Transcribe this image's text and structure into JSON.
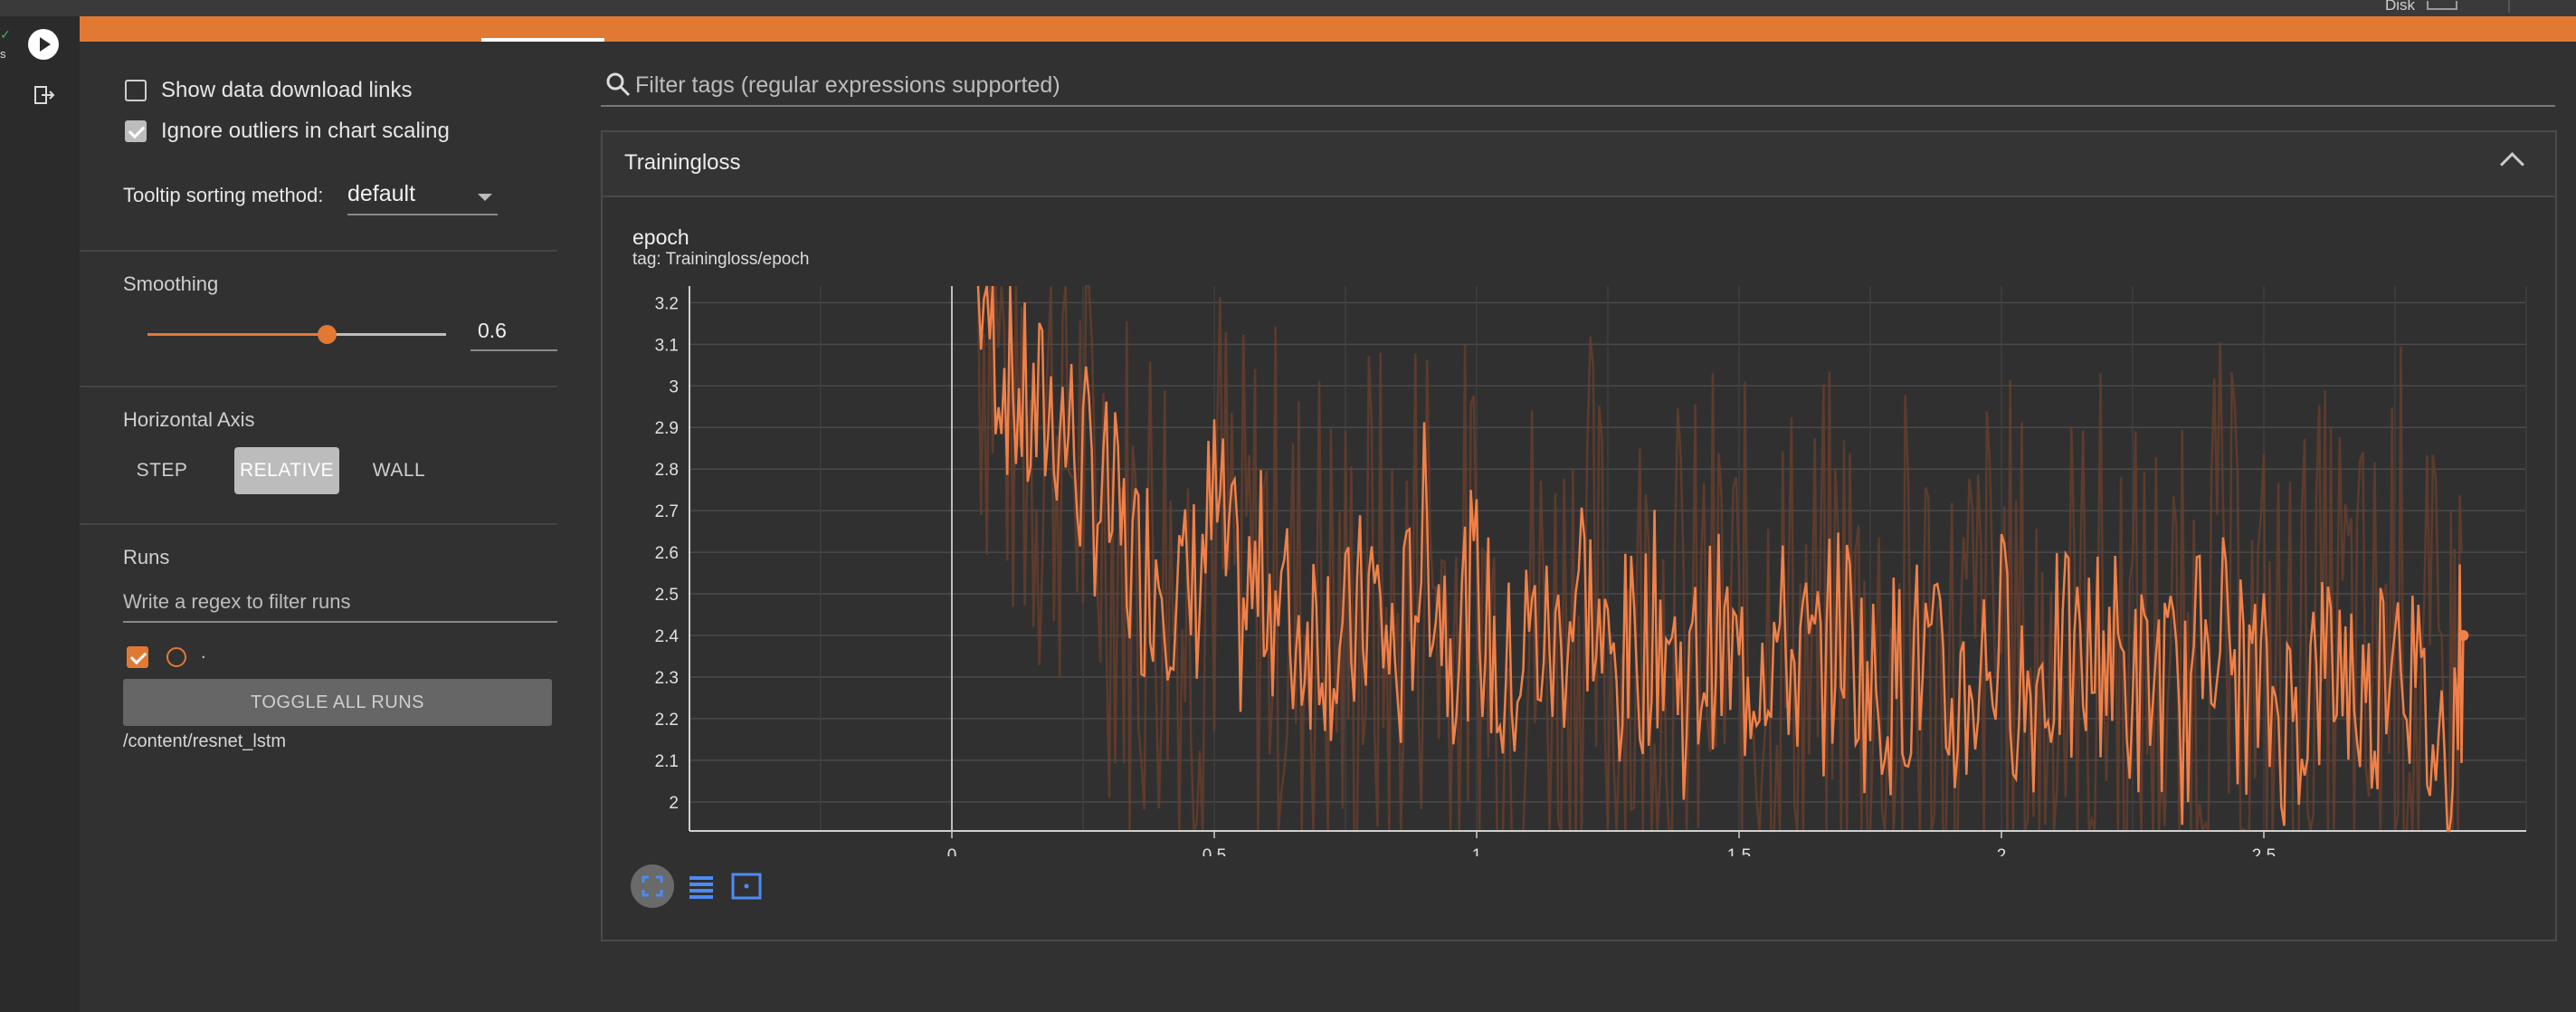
{
  "topbar": {
    "disk_label": "Disk"
  },
  "sidebar": {
    "show_download_label": "Show data download links",
    "show_download_checked": false,
    "ignore_outliers_label": "Ignore outliers in chart scaling",
    "ignore_outliers_checked": true,
    "tooltip_label": "Tooltip sorting method:",
    "tooltip_value": "default",
    "smoothing_title": "Smoothing",
    "smoothing_value": "0.6",
    "haxis_title": "Horizontal Axis",
    "haxis_options": [
      "STEP",
      "RELATIVE",
      "WALL"
    ],
    "haxis_selected": "RELATIVE",
    "runs_title": "Runs",
    "runs_placeholder": "Write a regex to filter runs",
    "run_label": ".",
    "toggle_all_label": "TOGGLE ALL RUNS",
    "run_path": "/content/resnet_lstm"
  },
  "main": {
    "filter_placeholder": "Filter tags (regular expressions supported)",
    "card_title": "Trainingloss",
    "plot_title": "epoch",
    "plot_tag": "tag: Trainingloss/epoch"
  },
  "colors": {
    "accent": "#e27933",
    "line": "#f08048",
    "raw_line": "#6b3f2c"
  },
  "icons": [
    "play-icon",
    "exit-icon",
    "search-icon",
    "chevron-up-icon",
    "fit-domain-icon",
    "toggle-log-icon",
    "zoom-box-icon"
  ],
  "chart_data": {
    "type": "line",
    "title": "epoch",
    "xlabel": "",
    "ylabel": "",
    "x_ticks": [
      0,
      0.5,
      1,
      1.5,
      2,
      2.5
    ],
    "y_ticks": [
      2,
      2.1,
      2.2,
      2.3,
      2.4,
      2.5,
      2.6,
      2.7,
      2.8,
      2.9,
      3,
      3.1,
      3.2
    ],
    "xlim": [
      -0.5,
      3.0
    ],
    "ylim": [
      1.93,
      3.24
    ],
    "series": [
      {
        "x": [
          0.05,
          0.1,
          0.15,
          0.2,
          0.25,
          0.3,
          0.35,
          0.4,
          0.45,
          0.5,
          0.55,
          0.6,
          0.65,
          0.7,
          0.75,
          0.8,
          0.85,
          0.9,
          0.95,
          1.0,
          1.05,
          1.1,
          1.15,
          1.2,
          1.25,
          1.3,
          1.35,
          1.4,
          1.45,
          1.5,
          1.55,
          1.6,
          1.65,
          1.7,
          1.75,
          1.8,
          1.85,
          1.9,
          1.95,
          2.0,
          2.05,
          2.1,
          2.15,
          2.2,
          2.25,
          2.3,
          2.35,
          2.4,
          2.45,
          2.5,
          2.55,
          2.6,
          2.65,
          2.7,
          2.75,
          2.8,
          2.85,
          2.88
        ],
        "values": [
          3.25,
          3.05,
          2.9,
          2.95,
          2.8,
          2.7,
          2.55,
          2.6,
          2.45,
          2.7,
          2.45,
          2.55,
          2.4,
          2.45,
          2.35,
          2.5,
          2.3,
          2.65,
          2.4,
          2.5,
          2.25,
          2.4,
          2.35,
          2.55,
          2.3,
          2.35,
          2.45,
          2.25,
          2.4,
          2.3,
          2.4,
          2.35,
          2.3,
          2.45,
          2.25,
          2.3,
          2.35,
          2.2,
          2.3,
          2.4,
          2.25,
          2.35,
          2.3,
          2.4,
          2.25,
          2.3,
          2.2,
          2.5,
          2.3,
          2.25,
          2.2,
          2.3,
          2.35,
          2.2,
          2.5,
          2.2,
          2.1,
          2.4
        ]
      }
    ],
    "grid": true,
    "legend": "none"
  }
}
